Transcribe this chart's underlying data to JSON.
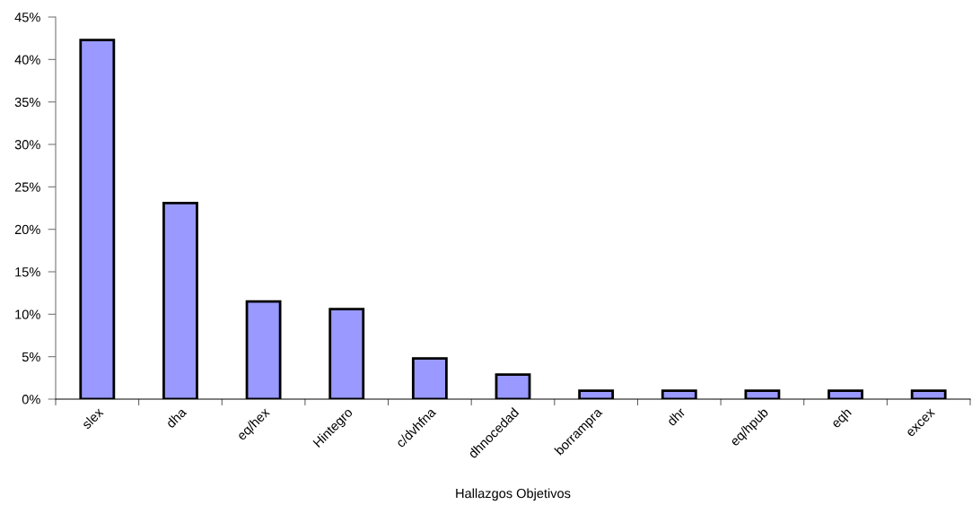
{
  "chart_data": {
    "type": "bar",
    "xlabel": "Hallazgos Objetivos",
    "categories": [
      "slex",
      "dha",
      "eq/hex",
      "Hintegro",
      "c/dvhfna",
      "dhnocedad",
      "borrampra",
      "dhr",
      "eq/hpub",
      "eqh",
      "excex"
    ],
    "values": [
      42.3,
      23.1,
      11.5,
      10.6,
      4.8,
      2.9,
      1.0,
      1.0,
      1.0,
      1.0,
      1.0
    ],
    "color": "#9999ff",
    "ylim": [
      0,
      45
    ],
    "yticks": [
      {
        "value": 0,
        "label": "0%"
      },
      {
        "value": 5,
        "label": "5%"
      },
      {
        "value": 10,
        "label": "10%"
      },
      {
        "value": 15,
        "label": "15%"
      },
      {
        "value": 20,
        "label": "20%"
      },
      {
        "value": 25,
        "label": "25%"
      },
      {
        "value": 30,
        "label": "30%"
      },
      {
        "value": 35,
        "label": "35%"
      },
      {
        "value": 40,
        "label": "40%"
      },
      {
        "value": 45,
        "label": "45%"
      }
    ]
  }
}
